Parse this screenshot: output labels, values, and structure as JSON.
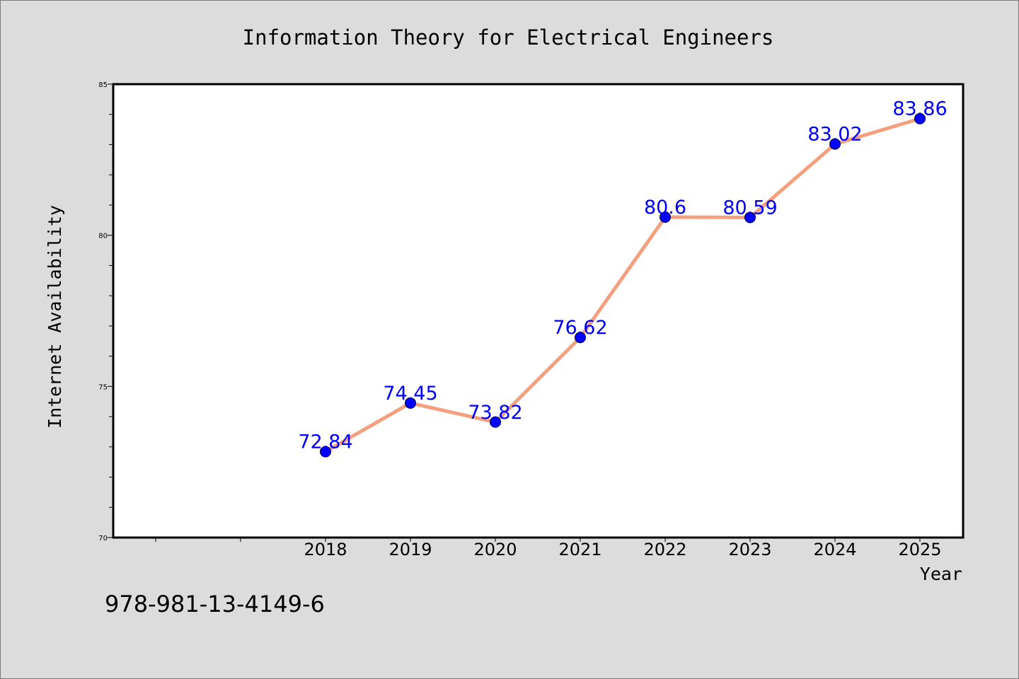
{
  "isbn": "978-981-13-4149-6",
  "colors": {
    "background": "#dcdcdc",
    "plot_background": "#ffffff",
    "line": "#f4a07e",
    "marker": "#0000ff",
    "label": "#0000ff"
  },
  "chart_data": {
    "type": "line",
    "title": "Information Theory for Electrical Engineers",
    "xlabel": "Year",
    "ylabel": "Internet Availability",
    "categories": [
      "2018",
      "2019",
      "2020",
      "2021",
      "2022",
      "2023",
      "2024",
      "2025"
    ],
    "series": [
      {
        "values": [
          72.84,
          74.45,
          73.82,
          76.62,
          80.6,
          80.59,
          83.02,
          83.86
        ],
        "labels": [
          "72.84",
          "74.45",
          "73.82",
          "76.62",
          "80.6",
          "80.59",
          "83.02",
          "83.86"
        ]
      }
    ],
    "ylim": [
      70,
      85
    ],
    "yticks": [
      "70",
      "75",
      "80",
      "85"
    ],
    "grid": false,
    "legend": "none"
  }
}
